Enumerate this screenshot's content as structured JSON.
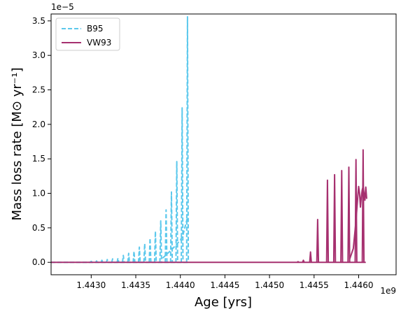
{
  "chart_data": {
    "type": "line",
    "xlabel": "Age [yrs]",
    "ylabel": "Mass loss rate [M⊙ yr⁻¹]",
    "x_offset_label": "1e9",
    "y_offset_label": "1e−5",
    "xlim": [
      1.44255,
      1.44642
    ],
    "ylim": [
      -0.18,
      3.6
    ],
    "x_ticks": [
      1.443,
      1.4435,
      1.444,
      1.4445,
      1.445,
      1.4455,
      1.446
    ],
    "x_tick_labels": [
      "1.4430",
      "1.4435",
      "1.4440",
      "1.4445",
      "1.4450",
      "1.4455",
      "1.4460"
    ],
    "y_ticks": [
      0.0,
      0.5,
      1.0,
      1.5,
      2.0,
      2.5,
      3.0,
      3.5
    ],
    "y_tick_labels": [
      "0.0",
      "0.5",
      "1.0",
      "1.5",
      "2.0",
      "2.5",
      "3.0",
      "3.5"
    ],
    "legend_position": "top-left",
    "grid": false,
    "series": [
      {
        "name": "B95",
        "color": "#5bc8ec",
        "style": "dashed",
        "baseline": [
          [
            1.44255,
            0.0
          ],
          [
            1.44408,
            0.0
          ]
        ],
        "pulses": [
          [
            1.443,
            0.015
          ],
          [
            1.44306,
            0.02
          ],
          [
            1.44312,
            0.03
          ],
          [
            1.44318,
            0.04
          ],
          [
            1.44324,
            0.05
          ],
          [
            1.4433,
            0.06
          ],
          [
            1.44336,
            0.1
          ],
          [
            1.44342,
            0.13
          ],
          [
            1.44348,
            0.16
          ],
          [
            1.44354,
            0.22
          ],
          [
            1.4436,
            0.27
          ],
          [
            1.44366,
            0.35
          ],
          [
            1.44372,
            0.45
          ],
          [
            1.44378,
            0.6
          ],
          [
            1.44384,
            0.76
          ],
          [
            1.4439,
            1.02
          ],
          [
            1.44396,
            1.46
          ],
          [
            1.44402,
            2.24
          ],
          [
            1.44408,
            3.56
          ]
        ],
        "tail": [
          [
            1.4438,
            0.06
          ],
          [
            1.44385,
            0.12
          ],
          [
            1.4439,
            0.18
          ],
          [
            1.44395,
            0.25
          ],
          [
            1.444,
            0.32
          ],
          [
            1.44403,
            0.4
          ],
          [
            1.44406,
            0.55
          ],
          [
            1.44408,
            0.65
          ]
        ]
      },
      {
        "name": "VW93",
        "color": "#a6306f",
        "style": "solid",
        "baseline": [
          [
            1.44255,
            0.0
          ],
          [
            1.44608,
            0.0
          ]
        ],
        "pulses": [
          [
            1.44532,
            0.01
          ],
          [
            1.44538,
            0.03
          ],
          [
            1.44546,
            0.15
          ],
          [
            1.44554,
            0.62
          ],
          [
            1.44565,
            1.19
          ],
          [
            1.44573,
            1.27
          ],
          [
            1.44581,
            1.33
          ],
          [
            1.44589,
            1.38
          ],
          [
            1.44597,
            1.49
          ],
          [
            1.44605,
            1.63
          ]
        ],
        "tail": [
          [
            1.4459,
            0.05
          ],
          [
            1.44594,
            0.2
          ],
          [
            1.44597,
            0.6
          ],
          [
            1.44599,
            0.95
          ],
          [
            1.446,
            1.1
          ],
          [
            1.44601,
            1.0
          ],
          [
            1.44602,
            0.8
          ],
          [
            1.44603,
            0.95
          ],
          [
            1.44604,
            1.05
          ],
          [
            1.44605,
            1.1
          ],
          [
            1.44606,
            1.0
          ],
          [
            1.44607,
            0.9
          ],
          [
            1.44608,
            1.09
          ],
          [
            1.44609,
            0.92
          ]
        ]
      }
    ]
  }
}
